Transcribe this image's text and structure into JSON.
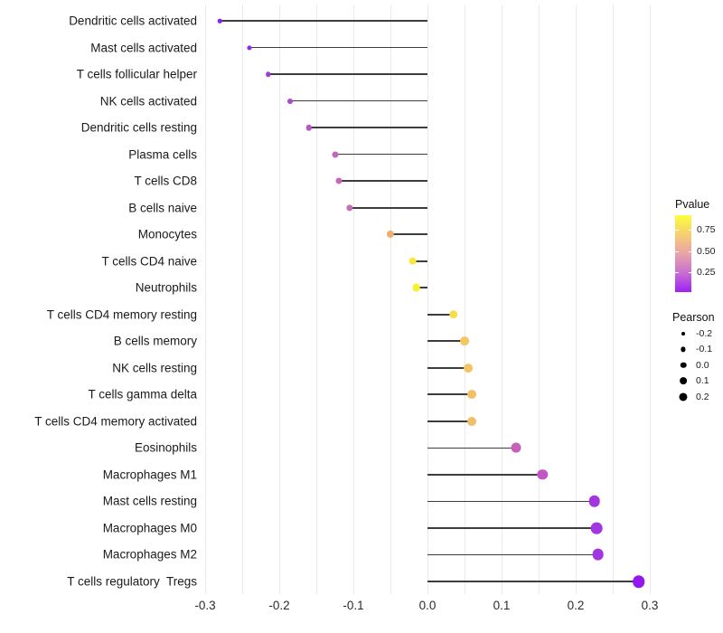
{
  "chart_data": {
    "type": "lollipop",
    "title": "",
    "xlabel": "",
    "ylabel": "",
    "xlim": [
      -0.31,
      0.31
    ],
    "grid": "vertical-only, light gray, every 0.05",
    "x_tick_labels": [
      "-0.3",
      "-0.2",
      "-0.1",
      "0.0",
      "0.1",
      "0.2",
      "0.3"
    ],
    "points": [
      {
        "label": "Dendritic cells activated",
        "pearson": -0.28,
        "color": "#8a1ff0"
      },
      {
        "label": "Mast cells activated",
        "pearson": -0.24,
        "color": "#9329e8"
      },
      {
        "label": "T cells follicular helper",
        "pearson": -0.215,
        "color": "#a038dc"
      },
      {
        "label": "NK cells activated",
        "pearson": -0.185,
        "color": "#ac45d2"
      },
      {
        "label": "Dendritic cells resting",
        "pearson": -0.16,
        "color": "#b755c7"
      },
      {
        "label": "Plasma cells",
        "pearson": -0.125,
        "color": "#c466ba"
      },
      {
        "label": "T cells CD8",
        "pearson": -0.12,
        "color": "#c568b9"
      },
      {
        "label": "B cells naive",
        "pearson": -0.105,
        "color": "#c76db3"
      },
      {
        "label": "Monocytes",
        "pearson": -0.05,
        "color": "#f0af68"
      },
      {
        "label": "T cells CD4 naive",
        "pearson": -0.02,
        "color": "#f7e73e"
      },
      {
        "label": "Neutrophils",
        "pearson": -0.015,
        "color": "#faf02e"
      },
      {
        "label": "T cells CD4 memory resting",
        "pearson": 0.035,
        "color": "#f8dc4b"
      },
      {
        "label": "B cells memory",
        "pearson": 0.05,
        "color": "#f4c763"
      },
      {
        "label": "NK cells resting",
        "pearson": 0.055,
        "color": "#f3c465"
      },
      {
        "label": "T cells gamma delta",
        "pearson": 0.06,
        "color": "#f3c066"
      },
      {
        "label": "T cells CD4 memory activated",
        "pearson": 0.06,
        "color": "#f2be67"
      },
      {
        "label": "Eosinophils",
        "pearson": 0.12,
        "color": "#c760bb"
      },
      {
        "label": "Macrophages M1",
        "pearson": 0.155,
        "color": "#c455c8"
      },
      {
        "label": "Mast cells resting",
        "pearson": 0.225,
        "color": "#a337df"
      },
      {
        "label": "Macrophages M0",
        "pearson": 0.228,
        "color": "#a236e0"
      },
      {
        "label": "Macrophages M2",
        "pearson": 0.23,
        "color": "#a135e1"
      },
      {
        "label": "T cells regulatory  Tregs",
        "pearson": 0.285,
        "color": "#9417f2"
      }
    ],
    "legend_pvalue": {
      "title": "Pvalue",
      "position": "right",
      "gradient_top_to_bottom": [
        {
          "offset": 0,
          "color": "#fcfe3c"
        },
        {
          "offset": 0.25,
          "color": "#f6ce72"
        },
        {
          "offset": 0.5,
          "color": "#eaa3a9"
        },
        {
          "offset": 0.75,
          "color": "#c96fd2"
        },
        {
          "offset": 1,
          "color": "#9d20f5"
        }
      ],
      "ticks": [
        {
          "label": "0.75",
          "frac_from_top": 0.19
        },
        {
          "label": "0.50",
          "frac_from_top": 0.47
        },
        {
          "label": "0.25",
          "frac_from_top": 0.74
        }
      ]
    },
    "legend_pearson": {
      "title": "Pearson",
      "position": "right",
      "sizes": [
        {
          "label": "-0.2",
          "value": -0.2
        },
        {
          "label": "-0.1",
          "value": -0.1
        },
        {
          "label": "0.0",
          "value": 0.0
        },
        {
          "label": "0.1",
          "value": 0.1
        },
        {
          "label": "0.2",
          "value": 0.2
        }
      ]
    },
    "colors": {
      "background": "#ffffff",
      "gridline": "#ebebeb",
      "stem": "#3d3d3d",
      "text": "#1a1a1a"
    }
  }
}
